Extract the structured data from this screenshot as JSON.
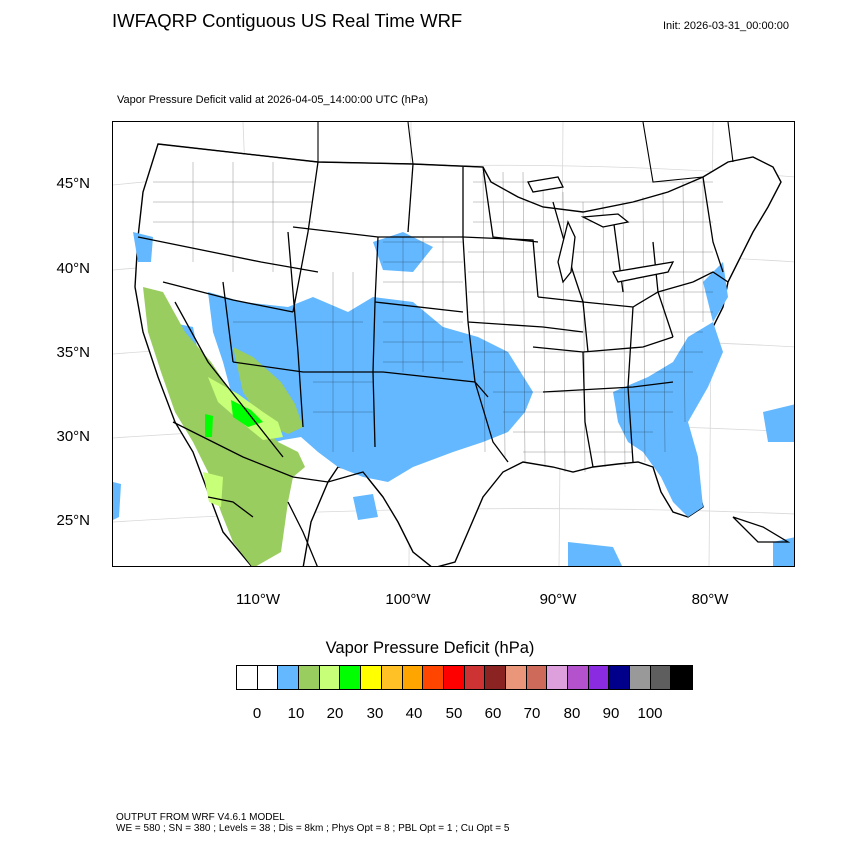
{
  "title": "IWFAQRP Contiguous US Real Time WRF",
  "init": "Init: 2026-03-31_00:00:00",
  "subtitle": "Vapor Pressure Deficit valid at 2026-04-05_14:00:00 UTC   (hPa)",
  "lat_labels": [
    "45°N",
    "40°N",
    "35°N",
    "30°N",
    "25°N"
  ],
  "lon_labels": [
    "110°W",
    "100°W",
    "90°W",
    "80°W"
  ],
  "colorbar": {
    "title": "Vapor Pressure Deficit  (hPa)",
    "colors": [
      "#ffffff",
      "#ffffff",
      "#63b8ff",
      "#9acd5f",
      "#c8ff78",
      "#00ff00",
      "#ffff00",
      "#ffc125",
      "#ffa500",
      "#ff4500",
      "#ff0000",
      "#cd3333",
      "#8b2323",
      "#e9967a",
      "#cd6a5a",
      "#dda0dd",
      "#b452cd",
      "#8a2be2",
      "#00008b",
      "#999999",
      "#5e5e5e",
      "#000000"
    ],
    "tick_labels": [
      "0",
      "10",
      "20",
      "30",
      "40",
      "50",
      "60",
      "70",
      "80",
      "90",
      "100"
    ]
  },
  "footer": {
    "line1": "OUTPUT FROM WRF V4.6.1 MODEL",
    "line2": "WE = 580 ; SN = 380 ; Levels = 38 ; Dis = 8km ; Phys Opt = 8 ; PBL Opt = 1 ; Cu Opt = 5"
  }
}
